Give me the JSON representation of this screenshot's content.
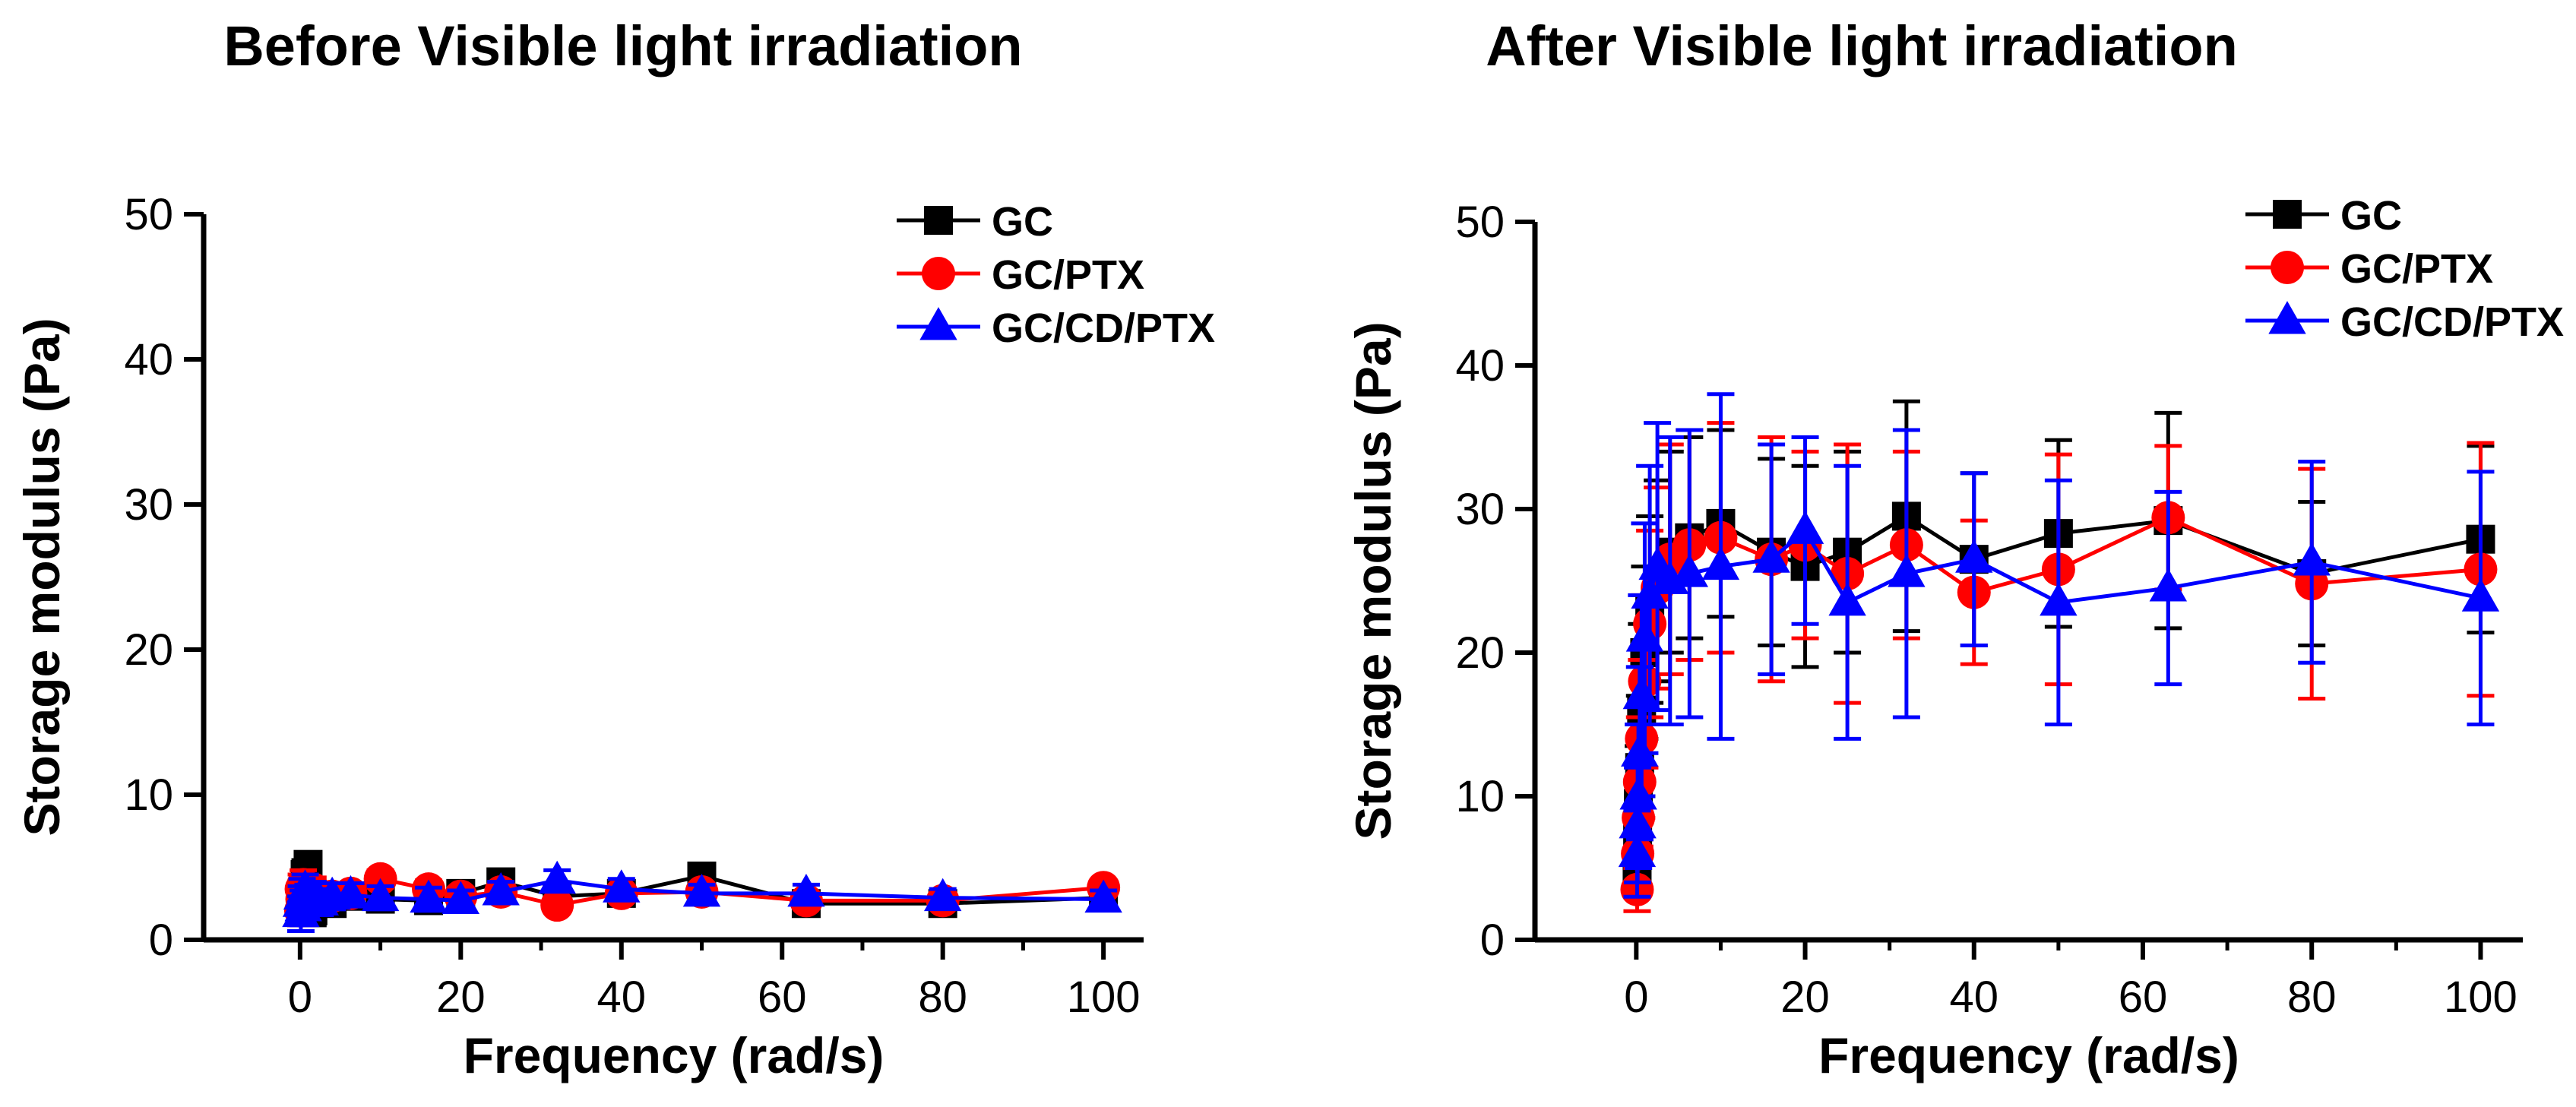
{
  "chart_data": [
    {
      "type": "line",
      "title": "Before Visible light irradiation",
      "xlabel": "Frequency (rad/s)",
      "ylabel": "Storage modulus (Pa)",
      "xlim": [
        -12,
        105
      ],
      "ylim": [
        0,
        50
      ],
      "xticks": [
        0,
        20,
        40,
        60,
        80,
        100
      ],
      "yticks": [
        0,
        10,
        20,
        30,
        40,
        50
      ],
      "legend": "top-right",
      "series": [
        {
          "name": "GC",
          "color": "#000000",
          "marker": "square",
          "x": [
            0.1,
            0.16,
            0.25,
            0.4,
            0.63,
            1,
            1.6,
            2.5,
            4,
            6.3,
            10,
            16,
            20,
            25,
            32,
            40,
            50,
            63,
            80,
            100
          ],
          "y": [
            2.5,
            3.0,
            2.2,
            3.3,
            4.5,
            5.2,
            2.0,
            3.0,
            2.5,
            3.0,
            2.8,
            2.7,
            3.2,
            4.0,
            3.0,
            3.2,
            4.4,
            2.5,
            2.5,
            2.9
          ],
          "err": [
            1.0,
            1.0,
            1.0,
            1.0,
            1.0,
            0.8,
            1.0,
            0.8,
            0.8,
            0.7,
            0.7,
            0.7,
            0.6,
            0.6,
            0.6,
            0.6,
            0.6,
            0.5,
            0.5,
            0.5
          ]
        },
        {
          "name": "GC/PTX",
          "color": "#ff0000",
          "marker": "circle",
          "x": [
            0.1,
            0.16,
            0.25,
            0.4,
            0.63,
            1,
            1.6,
            2.5,
            4,
            6.3,
            10,
            16,
            20,
            25,
            32,
            40,
            50,
            63,
            80,
            100
          ],
          "y": [
            2.0,
            3.5,
            2.8,
            3.8,
            2.5,
            3.0,
            3.5,
            2.8,
            3.0,
            3.2,
            4.2,
            3.5,
            3.0,
            3.3,
            2.4,
            3.2,
            3.3,
            2.7,
            2.7,
            3.6
          ],
          "err": [
            1.0,
            1.0,
            1.0,
            1.0,
            1.0,
            0.8,
            0.8,
            0.8,
            0.7,
            0.7,
            0.6,
            0.6,
            0.6,
            0.5,
            0.5,
            0.5,
            0.5,
            0.5,
            0.5,
            0.5
          ]
        },
        {
          "name": "GC/CD/PTX",
          "color": "#0000ff",
          "marker": "triangle",
          "x": [
            0.1,
            0.16,
            0.25,
            0.4,
            0.63,
            1,
            1.6,
            2.5,
            4,
            6.3,
            10,
            16,
            20,
            25,
            32,
            40,
            50,
            63,
            80,
            100
          ],
          "y": [
            1.8,
            2.5,
            3.0,
            2.2,
            3.5,
            2.8,
            3.0,
            2.6,
            3.0,
            3.1,
            2.9,
            2.8,
            2.7,
            3.3,
            4.1,
            3.5,
            3.2,
            3.2,
            2.9,
            2.8
          ],
          "err": [
            1.2,
            1.2,
            1.2,
            1.2,
            1.0,
            1.0,
            1.0,
            0.9,
            0.9,
            0.8,
            0.8,
            0.8,
            0.7,
            0.7,
            0.7,
            0.7,
            0.6,
            0.6,
            0.6,
            0.6
          ]
        }
      ]
    },
    {
      "type": "line",
      "title": "After Visible light irradiation",
      "xlabel": "Frequency (rad/s)",
      "ylabel": "Storage modulus (Pa)",
      "xlim": [
        -12,
        105
      ],
      "ylim": [
        0,
        50
      ],
      "xticks": [
        0,
        20,
        40,
        60,
        80,
        100
      ],
      "yticks": [
        0,
        10,
        20,
        30,
        40,
        50
      ],
      "legend": "top-right",
      "series": [
        {
          "name": "GC",
          "color": "#000000",
          "marker": "square",
          "x": [
            0.1,
            0.16,
            0.25,
            0.4,
            0.63,
            1,
            1.6,
            2.5,
            4,
            6.3,
            10,
            16,
            20,
            25,
            32,
            40,
            50,
            63,
            80,
            100
          ],
          "y": [
            5.0,
            7.0,
            9.5,
            12.0,
            16.0,
            20.0,
            23.0,
            25.0,
            27.0,
            28.0,
            29.0,
            27.0,
            26.0,
            27.0,
            29.5,
            26.5,
            28.3,
            29.2,
            25.5,
            27.9
          ],
          "err": [
            2.0,
            3.0,
            4.0,
            5.0,
            6.0,
            6.0,
            6.5,
            7.0,
            7.0,
            7.0,
            6.5,
            6.5,
            7.0,
            7.0,
            8.0,
            6.0,
            6.5,
            7.5,
            5.0,
            6.5
          ]
        },
        {
          "name": "GC/PTX",
          "color": "#ff0000",
          "marker": "circle",
          "x": [
            0.1,
            0.16,
            0.25,
            0.4,
            0.63,
            1,
            1.6,
            2.5,
            4,
            6.3,
            10,
            16,
            20,
            25,
            32,
            40,
            50,
            63,
            80,
            100
          ],
          "y": [
            3.5,
            6.0,
            8.5,
            11.0,
            14.0,
            18.0,
            22.0,
            24.5,
            26.5,
            27.5,
            28.0,
            26.5,
            27.5,
            25.5,
            27.5,
            24.2,
            25.8,
            29.4,
            24.8,
            25.8
          ],
          "err": [
            1.5,
            2.5,
            3.5,
            4.5,
            5.5,
            6.0,
            6.5,
            7.0,
            8.0,
            8.0,
            8.0,
            8.5,
            6.5,
            9.0,
            6.5,
            5.0,
            8.0,
            5.0,
            8.0,
            8.8
          ]
        },
        {
          "name": "GC/CD/PTX",
          "color": "#0000ff",
          "marker": "triangle",
          "x": [
            0.1,
            0.16,
            0.25,
            0.4,
            0.63,
            1,
            1.6,
            2.5,
            4,
            6.3,
            10,
            16,
            20,
            25,
            32,
            40,
            50,
            63,
            80,
            100
          ],
          "y": [
            6.0,
            8.0,
            10.0,
            13.0,
            17.0,
            21.0,
            24.0,
            26.0,
            25.0,
            25.5,
            26.0,
            26.5,
            28.5,
            23.5,
            25.5,
            26.5,
            23.5,
            24.5,
            26.3,
            23.8
          ],
          "err": [
            3.0,
            4.0,
            5.0,
            6.0,
            7.0,
            8.0,
            9.0,
            10.0,
            10.0,
            10.0,
            12.0,
            8.0,
            6.5,
            9.5,
            10.0,
            6.0,
            8.5,
            6.7,
            7.0,
            8.8
          ]
        }
      ]
    }
  ]
}
